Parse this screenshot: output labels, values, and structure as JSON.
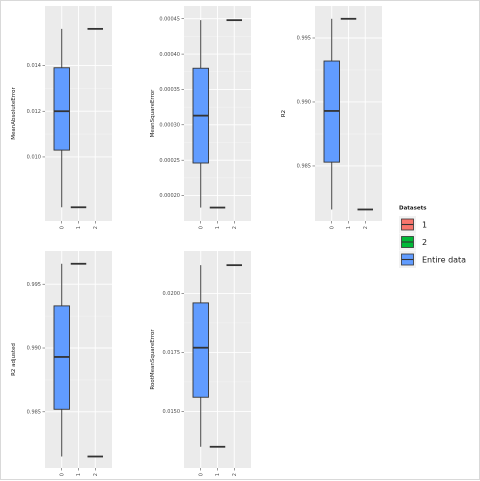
{
  "chart_data": {
    "type": "boxplot",
    "x_categories": [
      "0",
      "1",
      "2"
    ],
    "legend": {
      "title": "Datasets",
      "position": "right",
      "entries": [
        {
          "label": "1",
          "color": "#F8766D"
        },
        {
          "label": "2",
          "color": "#00BA38"
        },
        {
          "label": "Entire data",
          "color": "#619CFF"
        }
      ]
    },
    "grid": true,
    "panels": [
      {
        "ylabel": "MeanAbsoluteError",
        "ylim": [
          0.0072,
          0.0166
        ],
        "yticks": [
          0.01,
          0.012,
          0.014
        ],
        "ytick_labels": [
          "0.010",
          "0.012",
          "0.014"
        ],
        "boxes": [
          {
            "x": "0",
            "dataset": "Entire data",
            "min": 0.0078,
            "q1": 0.0103,
            "median": 0.012,
            "q3": 0.0139,
            "max": 0.0156
          },
          {
            "x": "1",
            "dataset": "2",
            "min": 0.0078,
            "q1": 0.0078,
            "median": 0.0078,
            "q3": 0.0078,
            "max": 0.0078
          },
          {
            "x": "2",
            "dataset": "1",
            "min": 0.0156,
            "q1": 0.0156,
            "median": 0.0156,
            "q3": 0.0156,
            "max": 0.0156
          }
        ]
      },
      {
        "ylabel": "MeanSquareError",
        "ylim": [
          0.000164,
          0.000468
        ],
        "yticks": [
          0.0002,
          0.00025,
          0.0003,
          0.00035,
          0.0004,
          0.00045
        ],
        "ytick_labels": [
          "0.00020",
          "0.00025",
          "0.00030",
          "0.00035",
          "0.00040",
          "0.00045"
        ],
        "boxes": [
          {
            "x": "0",
            "dataset": "Entire data",
            "min": 0.000183,
            "q1": 0.000246,
            "median": 0.000313,
            "q3": 0.00038,
            "max": 0.000448
          },
          {
            "x": "1",
            "dataset": "2",
            "min": 0.000183,
            "q1": 0.000183,
            "median": 0.000183,
            "q3": 0.000183,
            "max": 0.000183
          },
          {
            "x": "2",
            "dataset": "1",
            "min": 0.000448,
            "q1": 0.000448,
            "median": 0.000448,
            "q3": 0.000448,
            "max": 0.000448
          }
        ]
      },
      {
        "ylabel": "R2",
        "ylim": [
          0.9807,
          0.9975
        ],
        "yticks": [
          0.985,
          0.99,
          0.995
        ],
        "ytick_labels": [
          "0.985",
          "0.990",
          "0.995"
        ],
        "boxes": [
          {
            "x": "0",
            "dataset": "Entire data",
            "min": 0.9816,
            "q1": 0.9853,
            "median": 0.9893,
            "q3": 0.9932,
            "max": 0.9965
          },
          {
            "x": "1",
            "dataset": "Entire data",
            "min": 0.9965,
            "q1": 0.9965,
            "median": 0.9965,
            "q3": 0.9965,
            "max": 0.9965
          },
          {
            "x": "2",
            "dataset": "Entire data",
            "min": 0.9816,
            "q1": 0.9816,
            "median": 0.9816,
            "q3": 0.9816,
            "max": 0.9816
          }
        ]
      },
      {
        "ylabel": "R2 adjusted",
        "ylim": [
          0.9806,
          0.9976
        ],
        "yticks": [
          0.985,
          0.99,
          0.995
        ],
        "ytick_labels": [
          "0.985",
          "0.990",
          "0.995"
        ],
        "boxes": [
          {
            "x": "0",
            "dataset": "Entire data",
            "min": 0.9815,
            "q1": 0.9852,
            "median": 0.9893,
            "q3": 0.9933,
            "max": 0.9966
          },
          {
            "x": "1",
            "dataset": "Entire data",
            "min": 0.9966,
            "q1": 0.9966,
            "median": 0.9966,
            "q3": 0.9966,
            "max": 0.9966
          },
          {
            "x": "2",
            "dataset": "Entire data",
            "min": 0.9815,
            "q1": 0.9815,
            "median": 0.9815,
            "q3": 0.9815,
            "max": 0.9815
          }
        ]
      },
      {
        "ylabel": "RootMeanSquareError",
        "ylim": [
          0.0126,
          0.0218
        ],
        "yticks": [
          0.015,
          0.0175,
          0.02
        ],
        "ytick_labels": [
          "0.0150",
          "0.0175",
          "0.0200"
        ],
        "boxes": [
          {
            "x": "0",
            "dataset": "Entire data",
            "min": 0.0135,
            "q1": 0.0156,
            "median": 0.0177,
            "q3": 0.0196,
            "max": 0.0212
          },
          {
            "x": "1",
            "dataset": "Entire data",
            "min": 0.0135,
            "q1": 0.0135,
            "median": 0.0135,
            "q3": 0.0135,
            "max": 0.0135
          },
          {
            "x": "2",
            "dataset": "Entire data",
            "min": 0.0212,
            "q1": 0.0212,
            "median": 0.0212,
            "q3": 0.0212,
            "max": 0.0212
          }
        ]
      }
    ]
  }
}
